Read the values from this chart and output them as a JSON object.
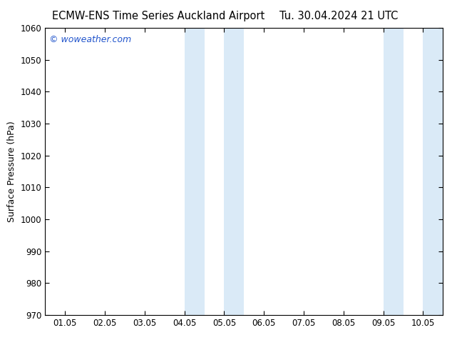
{
  "title_left": "ECMW-ENS Time Series Auckland Airport",
  "title_right": "Tu. 30.04.2024 21 UTC",
  "ylabel": "Surface Pressure (hPa)",
  "ylim": [
    970,
    1060
  ],
  "yticks": [
    970,
    980,
    990,
    1000,
    1010,
    1020,
    1030,
    1040,
    1050,
    1060
  ],
  "xtick_positions": [
    0,
    1,
    2,
    3,
    4,
    5,
    6,
    7,
    8,
    9
  ],
  "xtick_labels": [
    "01.05",
    "02.05",
    "03.05",
    "04.05",
    "05.05",
    "06.05",
    "07.05",
    "08.05",
    "09.05",
    "10.05"
  ],
  "xlim": [
    -0.5,
    9.5
  ],
  "shaded_bands": [
    {
      "x_start": 3.0,
      "x_end": 3.5,
      "color": "#daeaf7"
    },
    {
      "x_start": 4.0,
      "x_end": 4.5,
      "color": "#daeaf7"
    },
    {
      "x_start": 8.0,
      "x_end": 8.5,
      "color": "#daeaf7"
    },
    {
      "x_start": 9.0,
      "x_end": 9.5,
      "color": "#daeaf7"
    }
  ],
  "watermark_text": "© woweather.com",
  "watermark_color": "#2255cc",
  "background_color": "#ffffff",
  "plot_bg_color": "#ffffff",
  "title_fontsize": 10.5,
  "ylabel_fontsize": 9,
  "tick_fontsize": 8.5
}
